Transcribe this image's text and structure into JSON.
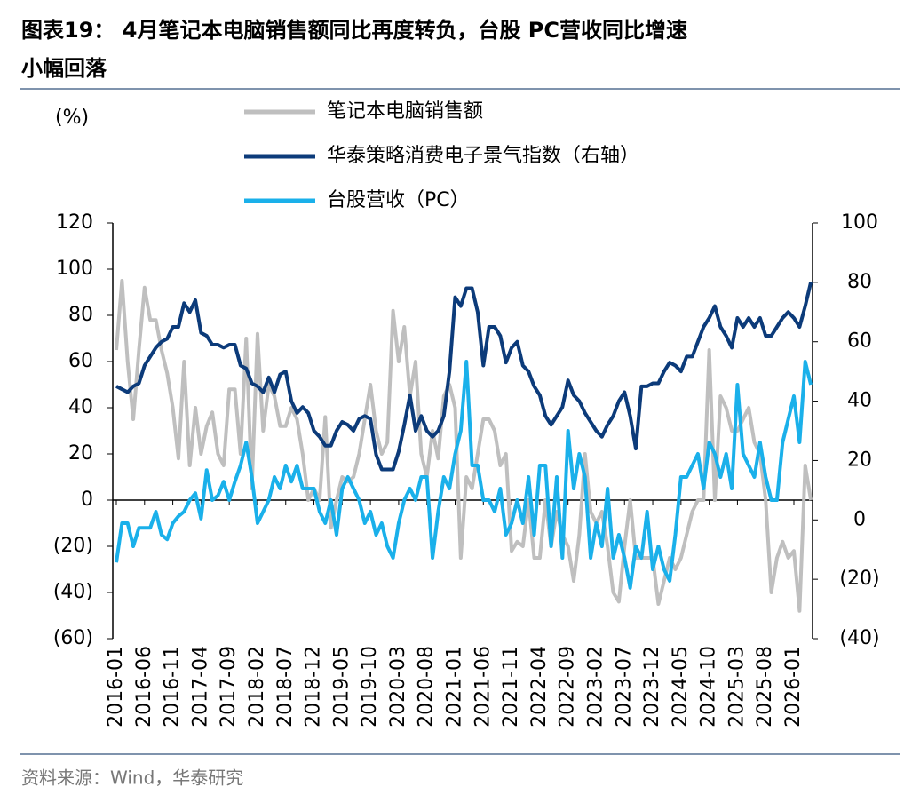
{
  "chart_data": {
    "type": "line",
    "title": "图表19： 4月笔记本电脑销售额同比再度转负，台股 PC营收同比增速小幅回落",
    "y_label": "(%)",
    "source": "资料来源：Wind，华泰研究",
    "categories": [
      "2016-01",
      null,
      null,
      null,
      null,
      "2016-06",
      null,
      null,
      null,
      null,
      "2016-11",
      null,
      null,
      null,
      null,
      "2017-04",
      null,
      null,
      null,
      null,
      "2017-09",
      null,
      null,
      null,
      null,
      "2018-02",
      null,
      null,
      null,
      null,
      "2018-07",
      null,
      null,
      null,
      null,
      "2018-12",
      null,
      null,
      null,
      null,
      "2019-05",
      null,
      null,
      null,
      null,
      "2019-10",
      null,
      null,
      null,
      null,
      "2020-03",
      null,
      null,
      null,
      null,
      "2020-08",
      null,
      null,
      null,
      null,
      "2021-01",
      null,
      null,
      null,
      null,
      "2021-06",
      null,
      null,
      null,
      null,
      "2021-11",
      null,
      null,
      null,
      null,
      "2022-04",
      null,
      null,
      null,
      null,
      "2022-09",
      null,
      null,
      null,
      null,
      "2023-02",
      null,
      null,
      null,
      null,
      "2023-07",
      null,
      null,
      null,
      null,
      "2023-12",
      null,
      null,
      null,
      null,
      "2024-05",
      null,
      null,
      null,
      null,
      "2024-10",
      null,
      null,
      null,
      null,
      "2025-03",
      null,
      null,
      null,
      null,
      "2025-08",
      null,
      null,
      null,
      null,
      "2026-01",
      null,
      null,
      null
    ],
    "series": [
      {
        "name": "笔记本电脑销售额",
        "color": "#bfbfbf",
        "values": [
          65,
          95,
          60,
          35,
          65,
          92,
          78,
          78,
          65,
          55,
          40,
          18,
          60,
          15,
          40,
          20,
          32,
          38,
          20,
          15,
          48,
          48,
          20,
          70,
          5,
          72,
          30,
          50,
          45,
          32,
          32,
          40,
          35,
          20,
          0,
          5,
          0,
          36,
          -12,
          0,
          10,
          8,
          10,
          20,
          35,
          50,
          30,
          20,
          25,
          82,
          60,
          75,
          45,
          60,
          20,
          10,
          30,
          18,
          45,
          50,
          40,
          -25,
          10,
          5,
          20,
          35,
          35,
          30,
          15,
          20,
          -22,
          -18,
          -20,
          0,
          -25,
          -25,
          0,
          -20,
          -5,
          -15,
          -20,
          -35,
          -15,
          20,
          -5,
          -10,
          -5,
          -20,
          -40,
          -44,
          -20,
          0,
          -25,
          -25,
          -25,
          -25,
          -45,
          -35,
          -25,
          -30,
          -25,
          -15,
          -5,
          0,
          0,
          65,
          0,
          45,
          40,
          30,
          30,
          35,
          40,
          25,
          20,
          0,
          -40,
          -25,
          -18,
          -25,
          -22,
          -48,
          15,
          0
        ]
      },
      {
        "name": "华泰策略消费电子景气指数（右轴）",
        "color": "#0c3b7a",
        "axis": "y2",
        "values": [
          45,
          44,
          43,
          45,
          46,
          52,
          55,
          58,
          60,
          61,
          65,
          65,
          73,
          70,
          74,
          63,
          62,
          59,
          59,
          58,
          59,
          59,
          52,
          51,
          46,
          45,
          43,
          48,
          43,
          49,
          50,
          40,
          36,
          38,
          36,
          30,
          28,
          25,
          25,
          30,
          33,
          32,
          30,
          34,
          35,
          34,
          22,
          17,
          17,
          17,
          23,
          32,
          42,
          30,
          35,
          30,
          28,
          30,
          35,
          50,
          75,
          72,
          78,
          78,
          70,
          52,
          65,
          65,
          62,
          53,
          58,
          60,
          52,
          50,
          45,
          42,
          35,
          32,
          35,
          38,
          47,
          42,
          40,
          36,
          33,
          30,
          28,
          32,
          35,
          40,
          43,
          35,
          24,
          45,
          45,
          46,
          46,
          50,
          53,
          52,
          50,
          55,
          55,
          60,
          65,
          68,
          72,
          65,
          62,
          58,
          68,
          65,
          68,
          65,
          68,
          62,
          62,
          65,
          68,
          70,
          68,
          65,
          72,
          80
        ]
      },
      {
        "name": "台股营收（PC）",
        "color": "#1ab0ea",
        "values": [
          -27,
          -10,
          -10,
          -20,
          -12,
          -12,
          -12,
          -5,
          -15,
          -17,
          -10,
          -7,
          -5,
          0,
          3,
          -8,
          13,
          0,
          2,
          8,
          0,
          8,
          15,
          25,
          10,
          -10,
          -5,
          0,
          10,
          5,
          15,
          8,
          15,
          5,
          5,
          5,
          -5,
          -10,
          0,
          -15,
          5,
          10,
          5,
          0,
          -10,
          -5,
          -15,
          -10,
          -20,
          -25,
          -10,
          0,
          5,
          0,
          10,
          10,
          -25,
          -5,
          10,
          5,
          20,
          30,
          60,
          15,
          15,
          0,
          0,
          -5,
          5,
          -15,
          -10,
          0,
          -10,
          10,
          -15,
          15,
          15,
          -20,
          10,
          -25,
          30,
          5,
          20,
          10,
          -25,
          -10,
          -20,
          5,
          -25,
          -15,
          -25,
          -38,
          -20,
          -25,
          -5,
          -30,
          -20,
          -30,
          -35,
          -15,
          10,
          10,
          15,
          20,
          5,
          25,
          20,
          10,
          20,
          5,
          50,
          20,
          15,
          10,
          25,
          10,
          0,
          0,
          25,
          35,
          45,
          25,
          60,
          50
        ]
      }
    ],
    "ylim": [
      -60,
      120
    ],
    "yticks": [
      120,
      100,
      80,
      60,
      40,
      20,
      0,
      {
        "value": -20,
        "label": "(20)"
      },
      {
        "value": -40,
        "label": "(40)"
      },
      {
        "value": -60,
        "label": "(60)"
      }
    ],
    "y2lim": [
      -40,
      100
    ],
    "y2ticks": [
      100,
      80,
      60,
      40,
      20,
      0,
      {
        "value": -20,
        "label": "(20)"
      },
      {
        "value": -40,
        "label": "(40)"
      }
    ]
  }
}
